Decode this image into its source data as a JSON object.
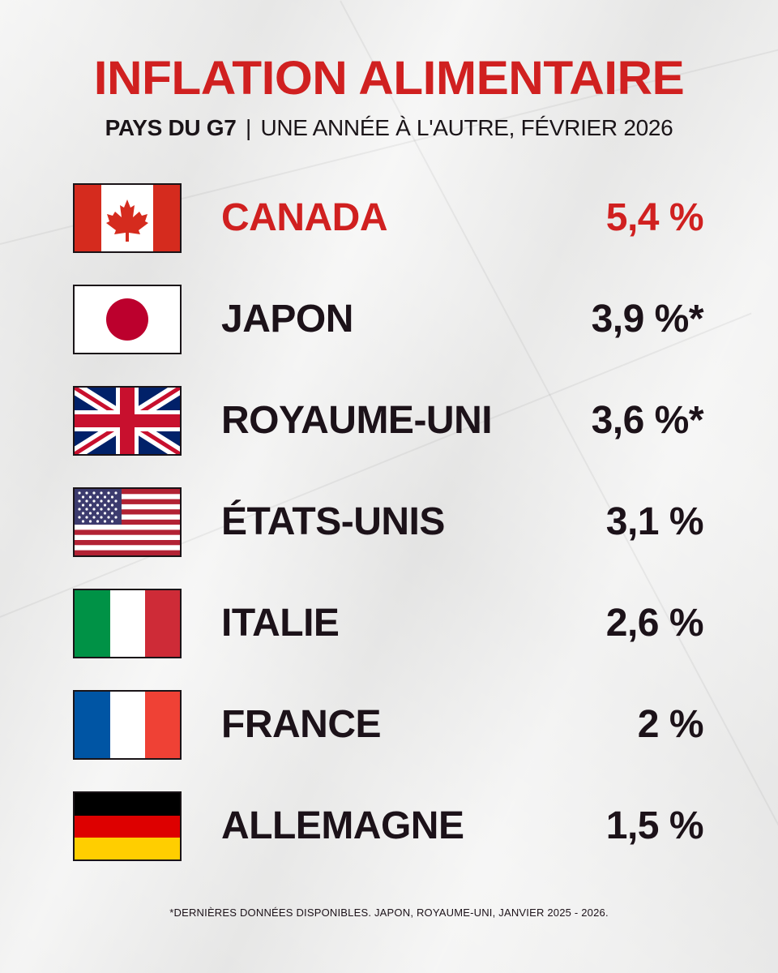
{
  "header": {
    "title": "INFLATION ALIMENTAIRE",
    "subtitle_strong": "PAYS DU G7",
    "subtitle_sep": "|",
    "subtitle_rest": "UNE ANNÉE À L'AUTRE, FÉVRIER 2026"
  },
  "rows": [
    {
      "country": "CANADA",
      "value": "5,4 %",
      "flag": "canada-flag-icon",
      "highlight": true
    },
    {
      "country": "JAPON",
      "value": "3,9 %*",
      "flag": "japan-flag-icon",
      "highlight": false
    },
    {
      "country": "ROYAUME-UNI",
      "value": "3,6 %*",
      "flag": "uk-flag-icon",
      "highlight": false
    },
    {
      "country": "ÉTATS-UNIS",
      "value": "3,1 %",
      "flag": "usa-flag-icon",
      "highlight": false
    },
    {
      "country": "ITALIE",
      "value": "2,6 %",
      "flag": "italy-flag-icon",
      "highlight": false
    },
    {
      "country": "FRANCE",
      "value": "2 %",
      "flag": "france-flag-icon",
      "highlight": false
    },
    {
      "country": "ALLEMAGNE",
      "value": "1,5 %",
      "flag": "germany-flag-icon",
      "highlight": false
    }
  ],
  "footnote": "*DERNIÈRES DONNÉES DISPONIBLES. JAPON, ROYAUME-UNI, JANVIER 2025 - 2026.",
  "colors": {
    "accent_red": "#d02020",
    "text_dark": "#1c1219",
    "paper": "#ececeb"
  }
}
